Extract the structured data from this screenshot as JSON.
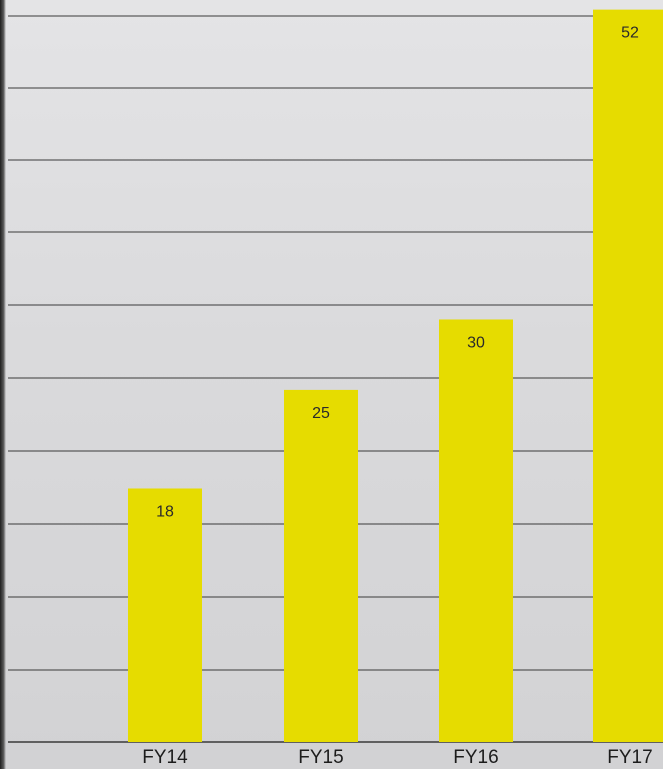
{
  "chart_data": {
    "type": "bar",
    "categories": [
      "FY14",
      "FY15",
      "FY16",
      "FY17"
    ],
    "values": [
      18,
      25,
      30,
      52
    ],
    "title": "",
    "xlabel": "",
    "ylabel": "",
    "ylim": [
      0,
      52.4
    ],
    "grid": true,
    "bar_color": "#e6dc00",
    "gridline_color": "#3a3a3a",
    "background_color": "#dedee0"
  }
}
